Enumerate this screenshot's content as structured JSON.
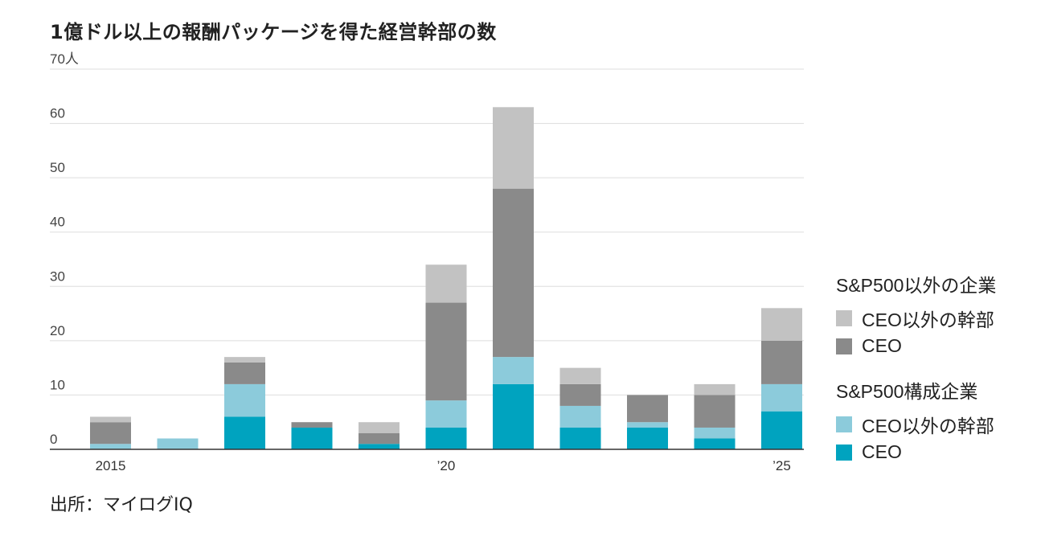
{
  "title": "1億ドル以上の報酬パッケージを得た経営幹部の数",
  "source": "出所：マイログIQ",
  "chart_data": {
    "type": "bar",
    "stacked": true,
    "x": [
      2015,
      2016,
      2017,
      2018,
      2019,
      2020,
      2021,
      2022,
      2023,
      2024,
      2025
    ],
    "x_tick_labels": [
      {
        "x": 2015,
        "label": "2015"
      },
      {
        "x": 2020,
        "label": "’20"
      },
      {
        "x": 2025,
        "label": "’25"
      }
    ],
    "y_ticks": [
      {
        "value": 0,
        "label": "0"
      },
      {
        "value": 10,
        "label": "10"
      },
      {
        "value": 20,
        "label": "20"
      },
      {
        "value": 30,
        "label": "30"
      },
      {
        "value": 40,
        "label": "40"
      },
      {
        "value": 50,
        "label": "50"
      },
      {
        "value": 60,
        "label": "60"
      },
      {
        "value": 70,
        "label": "70人"
      }
    ],
    "ylim": [
      0,
      70
    ],
    "grid": true,
    "legend_position": "right",
    "series": [
      {
        "name": "CEO",
        "group": "S&P500構成企業",
        "color": "#00a3bf",
        "values": [
          0,
          0,
          6,
          4,
          1,
          4,
          12,
          4,
          4,
          2,
          7
        ]
      },
      {
        "name": "CEO以外の幹部",
        "group": "S&P500構成企業",
        "color": "#8ccbdb",
        "values": [
          1,
          2,
          6,
          0,
          0,
          5,
          5,
          4,
          1,
          2,
          5
        ]
      },
      {
        "name": "CEO",
        "group": "S&P500以外の企業",
        "color": "#8a8a8a",
        "values": [
          4,
          0,
          4,
          1,
          2,
          18,
          31,
          4,
          5,
          6,
          8
        ]
      },
      {
        "name": "CEO以外の幹部",
        "group": "S&P500以外の企業",
        "color": "#c2c2c2",
        "values": [
          1,
          0,
          1,
          0,
          2,
          7,
          15,
          3,
          0,
          2,
          6
        ]
      }
    ],
    "legend": [
      {
        "title": "S&P500以外の企業",
        "items": [
          {
            "label": "CEO以外の幹部",
            "color": "#c2c2c2"
          },
          {
            "label": "CEO",
            "color": "#8a8a8a"
          }
        ]
      },
      {
        "title": "S&P500構成企業",
        "items": [
          {
            "label": "CEO以外の幹部",
            "color": "#8ccbdb"
          },
          {
            "label": "CEO",
            "color": "#00a3bf"
          }
        ]
      }
    ]
  }
}
